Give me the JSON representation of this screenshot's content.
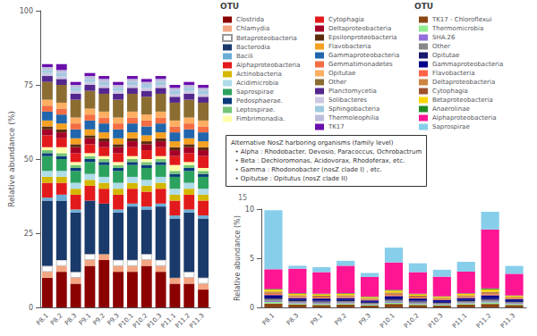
{
  "chart_data": [
    {
      "type": "bar",
      "stacked": true,
      "grid": false,
      "legend": "upper center",
      "legend_title": "OTU",
      "ylabel": "Relative abundance (%)",
      "ylim": [
        0,
        100
      ],
      "yticks": [
        0,
        25,
        50,
        75,
        100
      ],
      "categories": [
        "P8.1",
        "P8.2",
        "P8.3",
        "P9.1",
        "P9.2",
        "P9.3",
        "P10.1",
        "P10.2",
        "P10.3",
        "P11.1",
        "P11.2",
        "P11.3"
      ],
      "series": [
        {
          "name": "Clostrida",
          "color": "#8b0000",
          "values": [
            10,
            12,
            8,
            14,
            16,
            12,
            12,
            14,
            12,
            8,
            8,
            6
          ]
        },
        {
          "name": "Chlamydia",
          "color": "#f4a582",
          "values": [
            2,
            2,
            2,
            2,
            2,
            2,
            2,
            2,
            2,
            2,
            2,
            2
          ]
        },
        {
          "name": "Betaproteobacteria",
          "color": "#ffffff",
          "values": [
            2,
            2,
            2,
            2,
            0,
            2,
            2,
            2,
            2,
            0,
            2,
            2
          ]
        },
        {
          "name": "Bacterodia",
          "color": "#1a3a6b",
          "values": [
            22,
            20,
            20,
            18,
            17,
            16,
            18,
            15,
            18,
            20,
            20,
            20
          ]
        },
        {
          "name": "Bacili",
          "color": "#6baed6",
          "values": [
            1,
            2,
            1,
            0,
            0,
            1,
            1,
            1,
            1,
            1,
            1,
            1
          ]
        },
        {
          "name": "Alphaproteobacteria",
          "color": "#e31a1c",
          "values": [
            5,
            4,
            5,
            5,
            5,
            5,
            5,
            5,
            5,
            5,
            5,
            5
          ]
        },
        {
          "name": "Actinobacteria",
          "color": "#d4b700",
          "values": [
            2,
            2,
            2,
            2,
            2,
            2,
            2,
            2,
            2,
            2,
            2,
            2
          ]
        },
        {
          "name": "Acidimicrobia",
          "color": "#aedce8",
          "values": [
            2,
            2,
            2,
            2,
            2,
            2,
            2,
            2,
            2,
            2,
            2,
            2
          ]
        },
        {
          "name": "Saprospirae",
          "color": "#2ca25f",
          "values": [
            5,
            4,
            4,
            4,
            4,
            4,
            4,
            4,
            4,
            4,
            4,
            4
          ]
        },
        {
          "name": "Pedosphaerae.",
          "color": "#083a7a",
          "values": [
            1,
            1,
            1,
            1,
            1,
            1,
            1,
            1,
            1,
            1,
            1,
            1
          ]
        },
        {
          "name": "Leptospirae.",
          "color": "#74c476",
          "values": [
            1,
            1,
            1,
            1,
            1,
            1,
            1,
            1,
            1,
            1,
            1,
            1
          ]
        },
        {
          "name": "Fimbrimonadia.",
          "color": "#ffffaa",
          "values": [
            1,
            2,
            1,
            1,
            1,
            1,
            1,
            1,
            1,
            2,
            1,
            1
          ]
        },
        {
          "name": "Cytophagia",
          "color": "#e31a1c",
          "values": [
            4,
            3,
            3,
            3,
            3,
            3,
            3,
            3,
            3,
            3,
            3,
            4
          ]
        },
        {
          "name": "Deltaproteobacteria",
          "color": "#a50026",
          "values": [
            2,
            2,
            2,
            2,
            2,
            2,
            2,
            2,
            2,
            2,
            2,
            2
          ]
        },
        {
          "name": "Epsilonproteobacteria",
          "color": "#5c2d0e",
          "values": [
            1,
            1,
            1,
            1,
            1,
            1,
            1,
            1,
            1,
            1,
            1,
            1
          ]
        },
        {
          "name": "Flavobacteria",
          "color": "#f4a020",
          "values": [
            2,
            2,
            2,
            2,
            2,
            2,
            2,
            2,
            2,
            2,
            2,
            2
          ]
        },
        {
          "name": "Gammaproteobacteria",
          "color": "#2166ac",
          "values": [
            3,
            3,
            3,
            3,
            3,
            3,
            3,
            3,
            3,
            3,
            3,
            3
          ]
        },
        {
          "name": "Gemmatimonadetes",
          "color": "#f46d43",
          "values": [
            2,
            2,
            2,
            2,
            2,
            2,
            2,
            2,
            2,
            2,
            2,
            2
          ]
        },
        {
          "name": "Opitutae",
          "color": "#fdae61",
          "values": [
            2,
            2,
            2,
            2,
            2,
            2,
            2,
            2,
            2,
            2,
            2,
            2
          ]
        },
        {
          "name": "Other",
          "color": "#8c6d31",
          "values": [
            6,
            6,
            6,
            6,
            6,
            6,
            6,
            6,
            6,
            6,
            6,
            6
          ]
        },
        {
          "name": "Planctomycetia",
          "color": "#54278f",
          "values": [
            2,
            2,
            2,
            2,
            2,
            2,
            2,
            2,
            2,
            2,
            2,
            2
          ]
        },
        {
          "name": "Solibacteres",
          "color": "#cbc9e2",
          "values": [
            1,
            1,
            1,
            1,
            1,
            1,
            1,
            1,
            1,
            1,
            1,
            1
          ]
        },
        {
          "name": "Sphingobacteria",
          "color": "#9ecae1",
          "values": [
            1,
            1,
            1,
            1,
            1,
            1,
            1,
            1,
            1,
            1,
            1,
            1
          ]
        },
        {
          "name": "Thermoleophilia",
          "color": "#bcbddc",
          "values": [
            1,
            1,
            1,
            1,
            1,
            1,
            1,
            1,
            1,
            1,
            1,
            1
          ]
        },
        {
          "name": "TK17",
          "color": "#6a0dad",
          "values": [
            1,
            2,
            1,
            1,
            1,
            1,
            1,
            1,
            1,
            1,
            1,
            1
          ]
        }
      ]
    },
    {
      "type": "bar",
      "stacked": true,
      "grid": false,
      "legend": "upper right",
      "legend_title": "OTU",
      "ylabel": "Relative abundance (%)",
      "ylim": [
        0,
        10
      ],
      "yticks": [
        0,
        5,
        10
      ],
      "annotations": [
        "Alternative NosZ harboring organisms (family level)\n  • Alpha : Rhodobacter, Devosio, Paracoccus, Ochrobactrum\n  • Beta : Dechloromonas, Acidovorax, Rhodoferax, etc.\n  • Gamma : Rhodonobacter (nosZ clade I) , etc.\n  • Opitutae : Opitutus (nosZ clade II)",
        "15"
      ],
      "categories": [
        "P8.1",
        "P8.3",
        "P9.1",
        "P9.2",
        "P9.3",
        "P10.1",
        "P10.2",
        "P10.3",
        "P11.1",
        "P11.2",
        "P11.3"
      ],
      "series": [
        {
          "name": "TK17 - Chloroflexui",
          "color": "#8b4513",
          "values": [
            0.4,
            0.3,
            0.25,
            0.3,
            0.2,
            0.35,
            0.25,
            0.2,
            0.3,
            0.35,
            0.25
          ]
        },
        {
          "name": "Thermomicrobia",
          "color": "#90ee90",
          "values": [
            0.15,
            0.1,
            0.1,
            0.1,
            0.08,
            0.12,
            0.1,
            0.08,
            0.1,
            0.15,
            0.1
          ]
        },
        {
          "name": "SHA.26",
          "color": "#9370db",
          "values": [
            0.1,
            0.08,
            0.08,
            0.08,
            0.06,
            0.1,
            0.08,
            0.06,
            0.08,
            0.1,
            0.08
          ]
        },
        {
          "name": "Other",
          "color": "#888888",
          "values": [
            0.2,
            0.15,
            0.15,
            0.15,
            0.12,
            0.18,
            0.15,
            0.12,
            0.15,
            0.18,
            0.12
          ]
        },
        {
          "name": "Opitutae",
          "color": "#191970",
          "values": [
            0.15,
            0.12,
            0.12,
            0.12,
            0.1,
            0.15,
            0.12,
            0.1,
            0.12,
            0.15,
            0.1
          ]
        },
        {
          "name": "Gammaproteobacteria",
          "color": "#00008b",
          "values": [
            0.25,
            0.2,
            0.2,
            0.2,
            0.15,
            0.25,
            0.2,
            0.18,
            0.2,
            0.3,
            0.18
          ]
        },
        {
          "name": "Flavobacteria",
          "color": "#ff6347",
          "values": [
            0.1,
            0.08,
            0.08,
            0.08,
            0.06,
            0.1,
            0.08,
            0.06,
            0.08,
            0.1,
            0.06
          ]
        },
        {
          "name": "Deltaproteobacteria",
          "color": "#cd853f",
          "values": [
            0.15,
            0.12,
            0.12,
            0.12,
            0.1,
            0.15,
            0.12,
            0.1,
            0.12,
            0.15,
            0.1
          ]
        },
        {
          "name": "Cytophagia",
          "color": "#a0522d",
          "values": [
            0.1,
            0.08,
            0.08,
            0.08,
            0.06,
            0.1,
            0.08,
            0.06,
            0.08,
            0.1,
            0.06
          ]
        },
        {
          "name": "Betaproteobacteria",
          "color": "#ffd700",
          "values": [
            0.2,
            0.15,
            0.15,
            0.15,
            0.12,
            0.2,
            0.15,
            0.12,
            0.15,
            0.25,
            0.12
          ]
        },
        {
          "name": "Anaerolinae",
          "color": "#228b22",
          "values": [
            0.08,
            0.06,
            0.06,
            0.06,
            0.05,
            0.08,
            0.06,
            0.05,
            0.06,
            0.1,
            0.05
          ]
        },
        {
          "name": "Alphaproteobacteria",
          "color": "#ff1493",
          "values": [
            2.0,
            2.5,
            2.2,
            2.8,
            2.0,
            2.8,
            2.2,
            2.0,
            2.2,
            6.0,
            2.2
          ]
        },
        {
          "name": "Saprospirae",
          "color": "#87ceeb",
          "values": [
            6.0,
            0.3,
            0.5,
            0.5,
            0.4,
            1.5,
            0.9,
            0.7,
            1.0,
            1.8,
            0.8
          ]
        }
      ]
    }
  ]
}
